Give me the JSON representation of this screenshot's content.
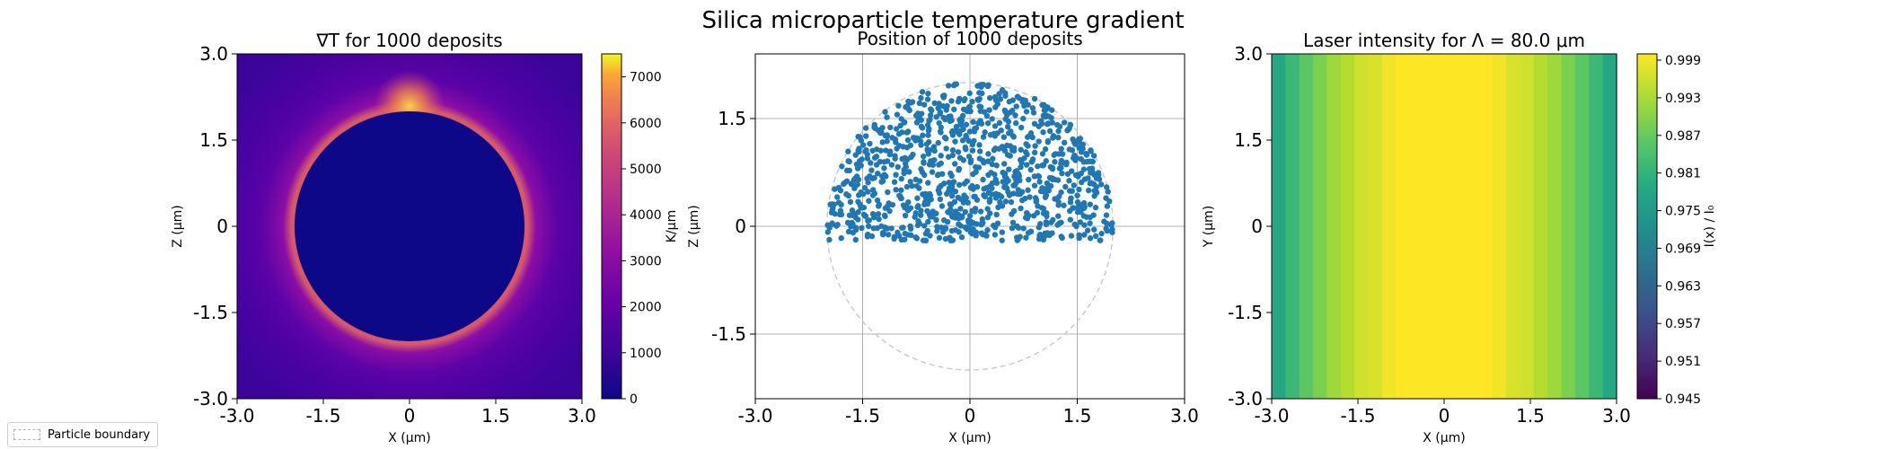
{
  "suptitle": "Silica microparticle temperature gradient",
  "legend": {
    "label": "Particle boundary",
    "style": "dashed",
    "placement": "bottom-left"
  },
  "chart_data": [
    {
      "type": "heatmap",
      "title": "∇T for 1000 deposits",
      "xlabel": "X (μm)",
      "ylabel": "Z (μm)",
      "xlim": [
        -3.0,
        3.0
      ],
      "ylim": [
        -3.0,
        3.0
      ],
      "x_ticks": [
        "-3.0",
        "-1.5",
        "0",
        "1.5",
        "3.0"
      ],
      "y_ticks": [
        "3.0",
        "1.5",
        "0",
        "-1.5",
        "-3.0"
      ],
      "colormap": "plasma",
      "particle_radius": 2.0,
      "colorbar": {
        "label": "K/μm",
        "range": [
          0,
          7500
        ],
        "ticks": [
          "0",
          "1000",
          "2000",
          "3000",
          "4000",
          "5000",
          "6000",
          "7000"
        ]
      },
      "grid": false
    },
    {
      "type": "scatter",
      "title": "Position of 1000 deposits",
      "xlabel": "X (μm)",
      "ylabel": "Z (μm)",
      "xlim": [
        -3.0,
        3.0
      ],
      "ylim": [
        -2.4,
        2.4
      ],
      "x_ticks": [
        "-3.0",
        "-1.5",
        "0",
        "1.5",
        "3.0"
      ],
      "y_ticks": [
        "1.5",
        "0",
        "-1.5"
      ],
      "point_count": 1000,
      "point_color": "#1f77b4",
      "deposit_region": {
        "z_min": -0.2,
        "radius": 2.0
      },
      "boundary_circle_radius": 2.0,
      "grid": true
    },
    {
      "type": "heatmap",
      "title": "Laser intensity for Λ = 80.0 μm",
      "xlabel": "X (μm)",
      "ylabel": "Y (μm)",
      "xlim": [
        -3.0,
        3.0
      ],
      "ylim": [
        -3.0,
        3.0
      ],
      "x_ticks": [
        "-3.0",
        "-1.5",
        "0",
        "1.5",
        "3.0"
      ],
      "y_ticks": [
        "3.0",
        "1.5",
        "0",
        "-1.5",
        "-3.0"
      ],
      "colormap": "viridis",
      "column_values": [
        0.978,
        0.982,
        0.986,
        0.989,
        0.992,
        0.994,
        0.996,
        0.997,
        0.999,
        1.0,
        1.0,
        1.0,
        1.0,
        1.0,
        1.0,
        1.0,
        0.999,
        0.997,
        0.996,
        0.994,
        0.992,
        0.989,
        0.986,
        0.982,
        0.978
      ],
      "colorbar": {
        "label": "I(x) / I₀",
        "range": [
          0.945,
          1.0
        ],
        "ticks": [
          "0.999",
          "0.993",
          "0.987",
          "0.981",
          "0.975",
          "0.969",
          "0.963",
          "0.957",
          "0.951",
          "0.945"
        ]
      },
      "grid": false
    }
  ]
}
